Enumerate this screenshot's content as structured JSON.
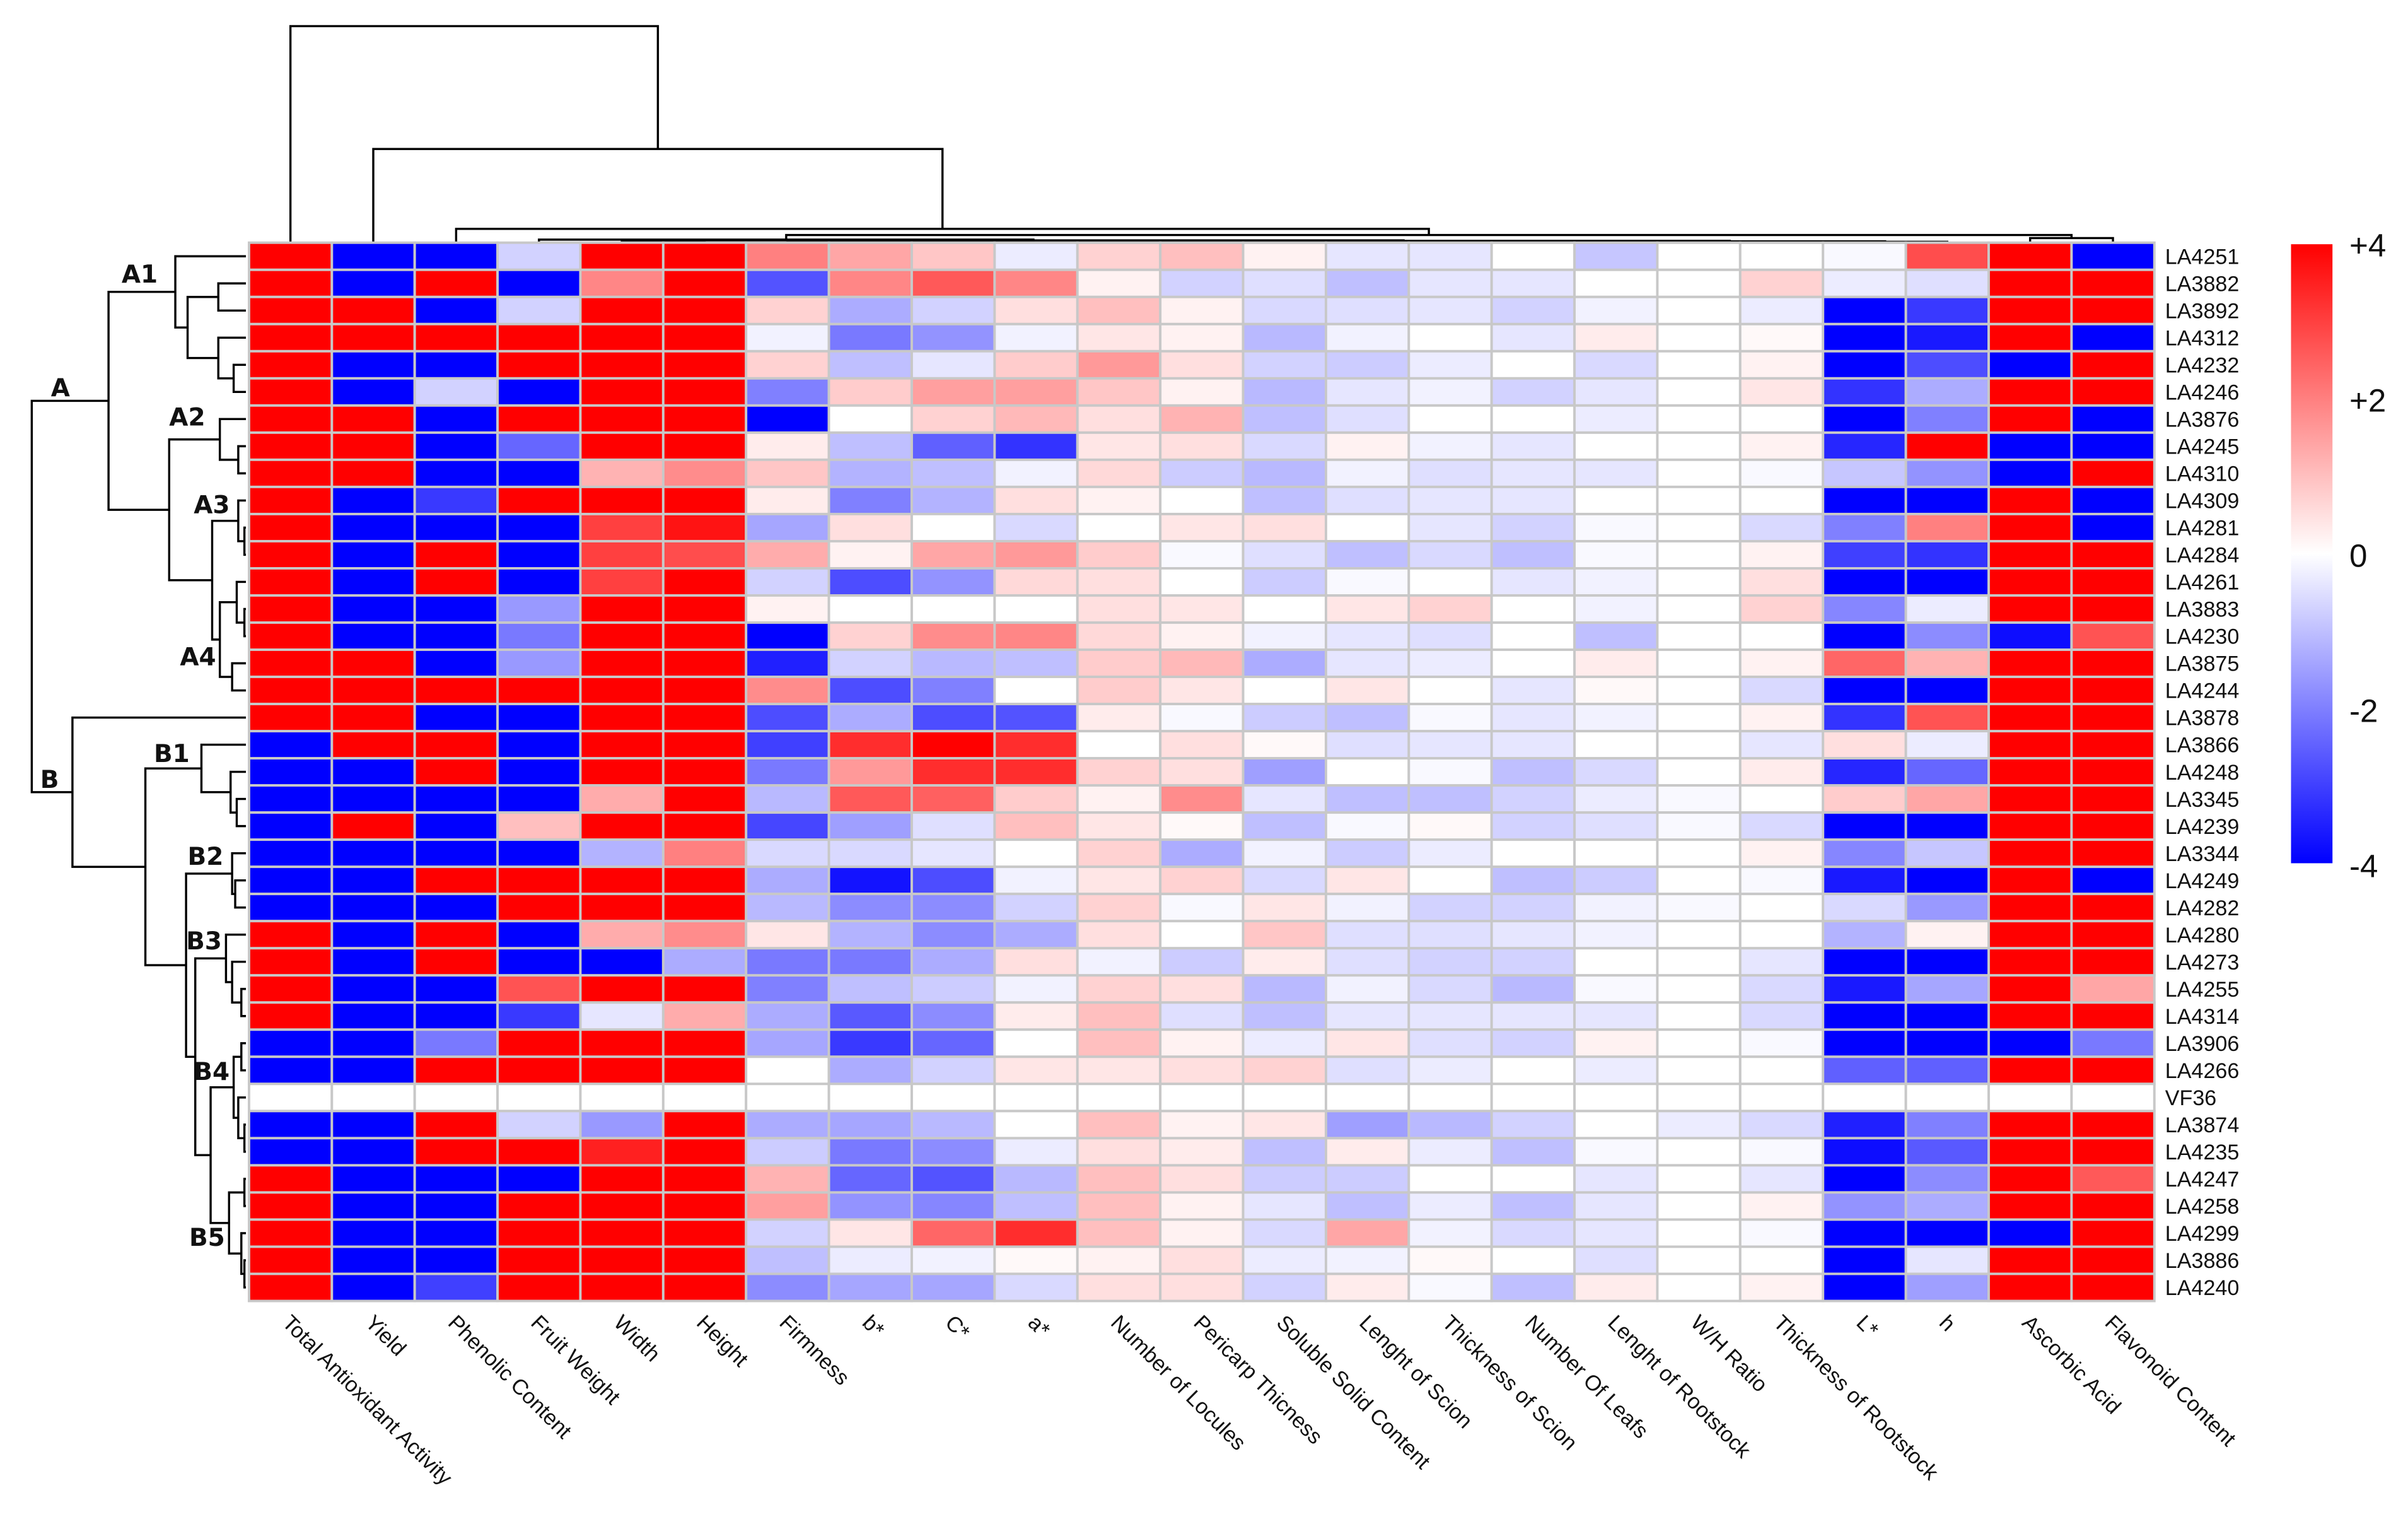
{
  "chart_data": {
    "type": "heatmap",
    "title": "",
    "columns": [
      "Total Antioxidant Activity",
      "Yield",
      "Phenolic Content",
      "Fruit Weight",
      "Width",
      "Height",
      "Firmness",
      "b*",
      "C*",
      "a*",
      "Number of Locules",
      "Pericarp Thicness",
      "Soluble Solid Content",
      "Lenght of Scion",
      "Thickness of Scion",
      "Number Of Leafs",
      "Lenght of Rootstock",
      "W/H Ratio",
      "Thickness of Rootstock",
      "L*",
      "h",
      "Ascorbic Acid",
      "Flavonoid Content"
    ],
    "rows": [
      "LA4251",
      "LA3882",
      "LA3892",
      "LA4312",
      "LA4232",
      "LA4246",
      "LA3876",
      "LA4245",
      "LA4310",
      "LA4309",
      "LA4281",
      "LA4284",
      "LA4261",
      "LA3883",
      "LA4230",
      "LA3875",
      "LA4244",
      "LA3878",
      "LA3866",
      "LA4248",
      "LA3345",
      "LA4239",
      "LA3344",
      "LA4249",
      "LA4282",
      "LA4280",
      "LA4273",
      "LA4255",
      "LA4314",
      "LA3906",
      "LA4266",
      "VF36",
      "LA3874",
      "LA4235",
      "LA4247",
      "LA4258",
      "LA4299",
      "LA3886",
      "LA4240"
    ],
    "values": [
      [
        4,
        -4,
        -4,
        -0.7,
        4,
        4,
        2,
        1.4,
        0.9,
        -0.3,
        0.7,
        1.0,
        0.2,
        -0.4,
        -0.4,
        0,
        -0.9,
        0,
        0,
        -0.1,
        2.8,
        4,
        -4
      ],
      [
        4,
        -4,
        4,
        -4,
        1.9,
        4,
        -2.7,
        1.9,
        2.6,
        1.9,
        0.2,
        -0.7,
        -0.5,
        -1,
        -0.4,
        -0.4,
        0,
        0,
        0.7,
        -0.3,
        -0.5,
        4,
        4
      ],
      [
        4,
        4,
        -4,
        -0.7,
        4,
        4,
        0.7,
        -1.3,
        -0.7,
        0.5,
        1,
        0.2,
        -0.6,
        -0.5,
        -0.4,
        -0.7,
        -0.2,
        0,
        -0.3,
        -4,
        -3.1,
        4,
        4
      ],
      [
        4,
        4,
        4,
        4,
        4,
        4,
        -0.2,
        -2.1,
        -1.7,
        -0.2,
        0.4,
        0.2,
        -1.1,
        -0.2,
        0,
        -0.4,
        0.3,
        0,
        0.1,
        -4,
        -3.6,
        4,
        -4
      ],
      [
        4,
        -4,
        -4,
        4,
        4,
        4,
        0.7,
        -1,
        -0.4,
        0.8,
        1.6,
        0.5,
        -0.7,
        -0.8,
        -0.3,
        0,
        -0.6,
        0,
        0.2,
        -4,
        -2.8,
        -4,
        4
      ],
      [
        4,
        -4,
        -0.7,
        -4,
        4,
        4,
        -2,
        0.8,
        1.5,
        1.5,
        0.9,
        0.2,
        -1.1,
        -0.4,
        -0.2,
        -0.7,
        -0.4,
        0,
        0.4,
        -3.2,
        -1.3,
        4,
        4
      ],
      [
        4,
        4,
        -4,
        4,
        4,
        4,
        -4,
        0,
        0.7,
        1.1,
        0.5,
        1.2,
        -1,
        -0.5,
        0,
        0,
        -0.3,
        0,
        0,
        -4,
        -2,
        4,
        -4
      ],
      [
        4,
        4,
        -4,
        -2.4,
        4,
        4,
        0.3,
        -1,
        -2.5,
        -3.2,
        0.4,
        0.5,
        -0.6,
        0.2,
        -0.2,
        -0.4,
        0,
        0,
        0.2,
        -3.4,
        4,
        -4,
        -4
      ],
      [
        4,
        4,
        -4,
        -4,
        1.2,
        1.8,
        0.9,
        -1.2,
        -1,
        -0.2,
        0.6,
        -0.8,
        -1.1,
        -0.2,
        -0.5,
        -0.4,
        -0.4,
        0,
        -0.1,
        -0.9,
        -1.7,
        -4,
        4
      ],
      [
        4,
        -4,
        -3.1,
        4,
        4,
        4,
        0.3,
        -2,
        -1.2,
        0.5,
        0.2,
        0,
        -1,
        -0.5,
        -0.4,
        -0.4,
        0,
        0,
        0,
        -4,
        -4,
        4,
        -4
      ],
      [
        4,
        -4,
        -4,
        -4,
        3,
        3.7,
        -1.4,
        0.5,
        0,
        -0.6,
        0,
        0.4,
        0.5,
        0,
        -0.4,
        -0.7,
        -0.1,
        0,
        -0.6,
        -2,
        2,
        4,
        -4
      ],
      [
        4,
        -4,
        4,
        -4,
        3,
        2.8,
        1.3,
        0.2,
        1.4,
        1.6,
        0.8,
        -0.1,
        -0.5,
        -1,
        -0.6,
        -1,
        -0.1,
        0,
        0.2,
        -3,
        -3.2,
        4,
        4
      ],
      [
        4,
        -4,
        4,
        -4,
        3,
        4,
        -0.7,
        -2.8,
        -1.7,
        0.6,
        0.5,
        0,
        -0.8,
        -0.1,
        0,
        -0.4,
        -0.2,
        0,
        0.5,
        -4,
        -4,
        4,
        4
      ],
      [
        4,
        -4,
        -4,
        -1.6,
        4,
        4,
        0.2,
        0,
        0,
        0,
        0.5,
        0.4,
        0,
        0.4,
        0.7,
        0,
        -0.2,
        0,
        0.7,
        -1.9,
        -0.3,
        4,
        4
      ],
      [
        4,
        -4,
        -4,
        -2.1,
        4,
        4,
        -4,
        0.7,
        1.8,
        1.9,
        0.6,
        0.2,
        -0.2,
        -0.4,
        -0.5,
        0,
        -1,
        0,
        0,
        -4,
        -1.8,
        -3.8,
        2.7
      ],
      [
        4,
        4,
        -4,
        -1.6,
        4,
        4,
        -3.5,
        -0.7,
        -1.1,
        -1,
        0.8,
        1.1,
        -1.3,
        -0.4,
        -0.3,
        0,
        0.3,
        0,
        0.2,
        2.4,
        1.2,
        4,
        4
      ],
      [
        4,
        4,
        4,
        4,
        4,
        4,
        1.8,
        -2.8,
        -2,
        0,
        0.8,
        0.4,
        0,
        0.4,
        0,
        -0.4,
        0.1,
        0,
        -0.6,
        -4,
        -4,
        4,
        4
      ],
      [
        4,
        4,
        -4,
        -4,
        4,
        4,
        -2.8,
        -1.3,
        -2.8,
        -2.7,
        0.3,
        -0.1,
        -0.8,
        -1,
        -0.1,
        -0.4,
        -0.2,
        0,
        0.2,
        -3.2,
        2.7,
        4,
        4
      ],
      [
        -4,
        4,
        4,
        -4,
        4,
        4,
        -3,
        3.3,
        4,
        3.3,
        0,
        0.5,
        0.1,
        -0.5,
        -0.4,
        -0.4,
        0,
        0,
        -0.4,
        0.5,
        -0.3,
        4,
        4
      ],
      [
        -4,
        -4,
        4,
        -4,
        4,
        4,
        -2.1,
        1.6,
        3.3,
        3.3,
        0.7,
        0.5,
        -1.5,
        0,
        -0.1,
        -1,
        -0.6,
        0,
        0.3,
        -3.4,
        -2.4,
        4,
        4
      ],
      [
        -4,
        -4,
        -4,
        -4,
        1.3,
        4,
        -1.1,
        2.6,
        2.5,
        0.8,
        0.2,
        1.8,
        -0.4,
        -1,
        -1,
        -0.7,
        -0.3,
        -0.1,
        0,
        0.8,
        1.4,
        4,
        4
      ],
      [
        -4,
        4,
        -4,
        1,
        4,
        4,
        -2.9,
        -1.5,
        -0.5,
        1.0,
        0.4,
        0.1,
        -1,
        -0.1,
        0.1,
        -0.7,
        -0.5,
        -0.1,
        -0.6,
        -4,
        -4,
        4,
        4
      ],
      [
        -4,
        -4,
        -4,
        -4,
        -1.2,
        2,
        -0.6,
        -0.6,
        -0.4,
        0,
        0.7,
        -1.3,
        -0.2,
        -0.8,
        -0.3,
        0,
        0,
        0,
        0.2,
        -1.9,
        -0.9,
        4,
        4
      ],
      [
        -4,
        -4,
        4,
        4,
        4,
        4,
        -1.3,
        -3.7,
        -2.8,
        -0.2,
        0.4,
        0.7,
        -0.6,
        0.4,
        0,
        -1,
        -0.8,
        0,
        -0.1,
        -3.6,
        -4,
        4,
        -4
      ],
      [
        -4,
        -4,
        -4,
        4,
        4,
        4,
        -1.1,
        -1.8,
        -1.8,
        -0.7,
        0.7,
        -0.1,
        0.4,
        -0.2,
        -0.7,
        -0.7,
        -0.2,
        -0.1,
        0,
        -0.6,
        -1.6,
        4,
        4
      ],
      [
        4,
        -4,
        4,
        -4,
        1.3,
        1.8,
        0.4,
        -1.2,
        -1.8,
        -1.3,
        0.5,
        0,
        0.9,
        -0.5,
        -0.5,
        -0.4,
        -0.2,
        0,
        0,
        -1.2,
        0.2,
        4,
        4
      ],
      [
        4,
        -4,
        4,
        -4,
        -4,
        -1.3,
        -2.1,
        -2.1,
        -1.3,
        0.5,
        -0.2,
        -0.8,
        0.3,
        -0.5,
        -0.7,
        -0.7,
        0,
        0,
        -0.4,
        -4,
        -4,
        4,
        4
      ],
      [
        4,
        -4,
        -4,
        2.7,
        4,
        4,
        -2,
        -1,
        -0.8,
        -0.2,
        0.7,
        0.5,
        -1.1,
        -0.2,
        -0.6,
        -1.1,
        -0.1,
        0,
        -0.6,
        -3.6,
        -1.4,
        4,
        1.4
      ],
      [
        4,
        -4,
        -4,
        -3.1,
        -0.4,
        1.3,
        -1.3,
        -2.6,
        -1.8,
        0.3,
        1,
        -0.5,
        -1,
        -0.4,
        -0.4,
        -0.4,
        -0.4,
        0,
        -0.6,
        -4,
        -4,
        4,
        4
      ],
      [
        -4,
        -4,
        -2.1,
        4,
        4,
        4,
        -1.4,
        -3.1,
        -2.4,
        0,
        1,
        0.2,
        -0.3,
        0.4,
        -0.5,
        -0.7,
        0.2,
        0,
        -0.1,
        -4,
        -4,
        -4,
        -2.1
      ],
      [
        -4,
        -4,
        4,
        4,
        4,
        4,
        0,
        -1.3,
        -0.7,
        0.4,
        0.4,
        0.5,
        0.7,
        -0.5,
        -0.3,
        0,
        -0.3,
        0,
        0,
        -2.5,
        -2.5,
        4,
        4
      ],
      [
        0,
        0,
        0,
        0,
        0,
        0,
        0,
        0,
        0,
        0,
        0,
        0,
        0,
        0,
        0,
        0,
        0,
        0,
        0,
        0,
        0,
        0,
        0
      ],
      [
        -4,
        -4,
        4,
        -0.7,
        -1.6,
        4,
        -1.3,
        -1.4,
        -1.1,
        0,
        1,
        0.2,
        0.4,
        -1.5,
        -1.1,
        -0.7,
        0,
        -0.3,
        -0.6,
        -3.5,
        -2,
        4,
        4
      ],
      [
        -4,
        -4,
        4,
        4,
        3.5,
        4,
        -0.8,
        -2.1,
        -1.8,
        -0.3,
        0.5,
        0.3,
        -1,
        0.3,
        -0.3,
        -1,
        -0.1,
        0,
        -0.1,
        -3.8,
        -2.6,
        4,
        4
      ],
      [
        4,
        -4,
        -4,
        -4,
        4,
        4,
        1.2,
        -2.4,
        -2.7,
        -1.1,
        1,
        0.5,
        -0.8,
        -0.8,
        0,
        0,
        -0.4,
        0,
        -0.4,
        -4,
        -1.8,
        4,
        2.6
      ],
      [
        4,
        -4,
        -4,
        4,
        4,
        4,
        1.5,
        -1.7,
        -1.9,
        -1,
        1,
        0.2,
        -0.4,
        -1,
        -0.3,
        -1,
        -0.4,
        0,
        0.2,
        -1.7,
        -1.3,
        4,
        4
      ],
      [
        4,
        -4,
        -4,
        4,
        4,
        4,
        -0.7,
        0.4,
        2.4,
        3.3,
        1,
        0.2,
        -0.6,
        1.4,
        -0.2,
        -0.6,
        -0.4,
        0,
        -0.1,
        -4,
        -4,
        -4,
        4
      ],
      [
        4,
        -4,
        -4,
        4,
        4,
        4,
        -1,
        -0.3,
        -0.2,
        0.1,
        0.2,
        0.5,
        -0.3,
        -0.2,
        0.1,
        0,
        -0.5,
        0,
        0,
        -4,
        -0.4,
        4,
        4
      ],
      [
        4,
        -4,
        -3,
        4,
        4,
        4,
        -1.8,
        -1.4,
        -1.4,
        -0.6,
        0.5,
        0.5,
        -0.7,
        0.3,
        -0.1,
        -1,
        0.3,
        0,
        0.2,
        -4,
        -1.5,
        4,
        4
      ]
    ],
    "color_range": [
      -4,
      4
    ],
    "colorbar": {
      "ticks": [
        "+4",
        "+2",
        "0",
        "-2",
        "-4"
      ],
      "high_color": "#ff0000",
      "mid_color": "#ffffff",
      "low_color": "#0000ff"
    },
    "row_clusters": [
      "A",
      "A1",
      "A2",
      "A3",
      "A4",
      "B",
      "B1",
      "B2",
      "B3",
      "B4",
      "B5"
    ],
    "legend_position": "right",
    "grid": true
  }
}
